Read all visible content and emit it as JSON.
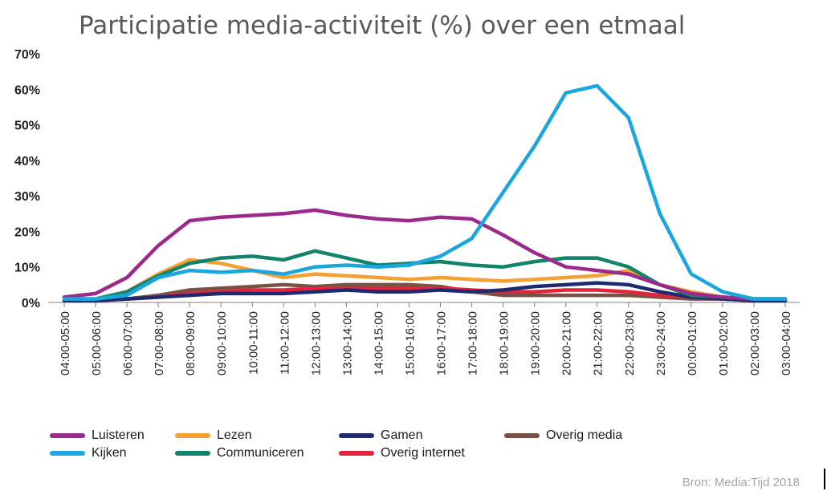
{
  "chart_data": {
    "type": "line",
    "title": "Participatie media-activiteit (%) over een etmaal",
    "xlabel": "",
    "ylabel": "",
    "ylim": [
      0,
      70
    ],
    "yticks": [
      "0%",
      "10%",
      "20%",
      "30%",
      "40%",
      "50%",
      "60%",
      "70%"
    ],
    "grid": false,
    "legend_position": "bottom",
    "categories": [
      "04:00-05:00",
      "05:00-06:00",
      "06:00-07:00",
      "07:00-08:00",
      "08:00-09:00",
      "09:00-10:00",
      "10:00-11:00",
      "11:00-12:00",
      "12:00-13:00",
      "13:00-14:00",
      "14:00-15:00",
      "15:00-16:00",
      "16:00-17:00",
      "17:00-18:00",
      "18:00-19:00",
      "19:00-20:00",
      "20:00-21:00",
      "21:00-22:00",
      "22:00-23:00",
      "23:00-24:00",
      "00:00-01:00",
      "01:00-02:00",
      "02:00-03:00",
      "03:00-04:00"
    ],
    "series": [
      {
        "name": "Luisteren",
        "color": "#9b2a8c",
        "values": [
          1.5,
          2.5,
          7,
          16,
          23,
          24,
          24.5,
          25,
          26,
          24.5,
          23.5,
          23,
          24,
          23.5,
          19,
          14,
          10,
          9,
          8,
          5,
          2.5,
          1.5,
          1,
          1
        ]
      },
      {
        "name": "Kijken",
        "color": "#1aa7df",
        "values": [
          1,
          1,
          2,
          7,
          9,
          8.5,
          9,
          8,
          10,
          10.5,
          10,
          10.5,
          13,
          18,
          31,
          44,
          59,
          61,
          52,
          25,
          8,
          3,
          1,
          1
        ]
      },
      {
        "name": "Lezen",
        "color": "#f5a033",
        "values": [
          1,
          1,
          3,
          8,
          12,
          11,
          9,
          7,
          8,
          7.5,
          7,
          6.5,
          7,
          6.5,
          6,
          6.5,
          7,
          7.5,
          9,
          5,
          3,
          1.5,
          1,
          1
        ]
      },
      {
        "name": "Communiceren",
        "color": "#13846c",
        "values": [
          1,
          1,
          3,
          7.5,
          11,
          12.5,
          13,
          12,
          14.5,
          12.5,
          10.5,
          11,
          11.5,
          10.5,
          10,
          11.5,
          12.5,
          12.5,
          10,
          5,
          2,
          1.5,
          1,
          1
        ]
      },
      {
        "name": "Gamen",
        "color": "#1e2a70",
        "values": [
          0.5,
          0.5,
          1,
          1.5,
          2,
          2.5,
          2.5,
          2.5,
          3,
          3.5,
          3,
          3,
          3.5,
          3,
          3.5,
          4.5,
          5,
          5.5,
          5,
          3,
          1.5,
          1,
          0.5,
          0.5
        ]
      },
      {
        "name": "Overig internet",
        "color": "#e4243c",
        "values": [
          0.5,
          0.5,
          1,
          1.5,
          2.5,
          3,
          3.5,
          3.5,
          4,
          4,
          4,
          4,
          4,
          3.5,
          3,
          3,
          3.5,
          3.5,
          3,
          2,
          1.5,
          1,
          0.5,
          0.5
        ]
      },
      {
        "name": "Overig media",
        "color": "#7a5244",
        "values": [
          0.5,
          0.5,
          1,
          2,
          3.5,
          4,
          4.5,
          5,
          4.5,
          5,
          5,
          5,
          4.5,
          3,
          2,
          2,
          2,
          2,
          2,
          1.5,
          1,
          1,
          0.5,
          0.5
        ]
      }
    ],
    "source": "Bron: Media:Tijd 2018"
  },
  "legend": [
    {
      "label": "Luisteren",
      "color": "#9b2a8c"
    },
    {
      "label": "Kijken",
      "color": "#1aa7df"
    },
    {
      "label": "Lezen",
      "color": "#f5a033"
    },
    {
      "label": "Communiceren",
      "color": "#13846c"
    },
    {
      "label": "Gamen",
      "color": "#1e2a70"
    },
    {
      "label": "Overig internet",
      "color": "#e4243c"
    },
    {
      "label": "Overig media",
      "color": "#7a5244"
    }
  ]
}
